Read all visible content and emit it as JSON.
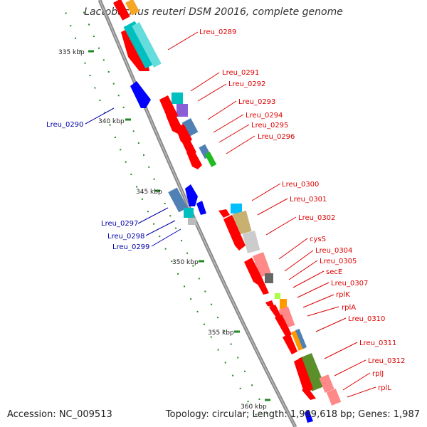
{
  "title": "Lactobacillus reuteri DSM 20016, complete genome",
  "footer": {
    "accession": "Accession: NC_009513",
    "summary": "Topology: circular; Length: 1,999,618 bp; Genes: 1,987"
  },
  "colors": {
    "forward_cds": "#ff0000",
    "reverse_cds": "#0000ff",
    "forward_label": "#dd0000",
    "reverse_label": "#0000aa",
    "backbone": "#8a8a8a",
    "ticks": "#228822"
  },
  "kbp_labels": [
    "335 kbp",
    "340 kbp",
    "345 kbp",
    "350 kbp",
    "355 kbp",
    "360 kbp"
  ],
  "forward_genes": [
    "Lreu_0289",
    "Lreu_0291",
    "Lreu_0292",
    "Lreu_0293",
    "Lreu_0294",
    "Lreu_0295",
    "Lreu_0296",
    "Lreu_0300",
    "Lreu_0301",
    "Lreu_0302",
    "cysS",
    "Lreu_0304",
    "Lreu_0305",
    "secE",
    "Lreu_0307",
    "rplK",
    "rplA",
    "Lreu_0310",
    "Lreu_0311",
    "Lreu_0312",
    "rplJ",
    "rplL"
  ],
  "reverse_genes": [
    "Lreu_0290",
    "Lreu_0297",
    "Lreu_0298",
    "Lreu_0299"
  ]
}
